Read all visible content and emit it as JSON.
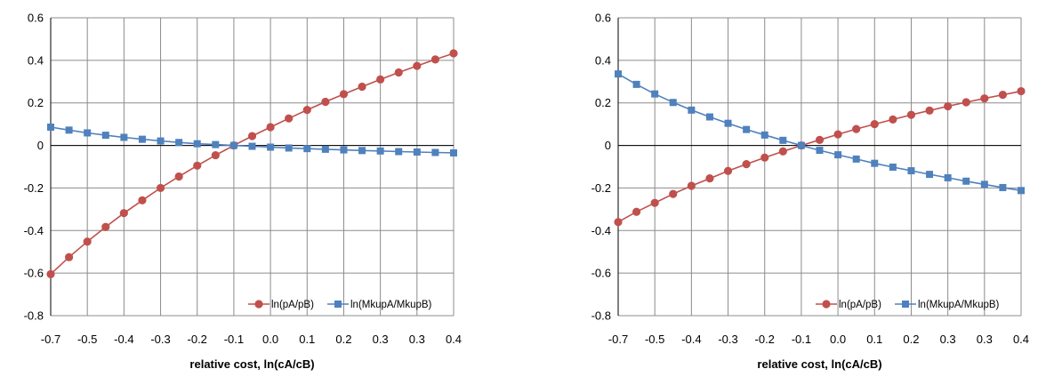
{
  "colors": {
    "series_red": "#c0504d",
    "series_blue": "#4f81bd",
    "grid": "#8c8c8c"
  },
  "chart_data": [
    {
      "type": "line",
      "xlabel": "relative cost, ln(cA/cB)",
      "xlim": [
        -0.7,
        0.4
      ],
      "ylim": [
        -0.8,
        0.6
      ],
      "x_ticks": [
        "-0.7",
        "-0.5",
        "-0.4",
        "-0.3",
        "-0.2",
        "-0.1",
        "0.0",
        "0.1",
        "0.2",
        "0.3",
        "0.3",
        "0.4"
      ],
      "y_ticks": [
        "0.6",
        "0.4",
        "0.2",
        "0",
        "-0.2",
        "-0.4",
        "-0.6",
        "-0.8"
      ],
      "grid": true,
      "legend_position": "bottom-right",
      "x": [
        -0.7,
        -0.65,
        -0.6,
        -0.55,
        -0.5,
        -0.45,
        -0.4,
        -0.35,
        -0.3,
        -0.25,
        -0.2,
        -0.15,
        -0.1,
        -0.05,
        0.0,
        0.05,
        0.1,
        0.15,
        0.2,
        0.25,
        0.3,
        0.35,
        0.4
      ],
      "series": [
        {
          "name": "ln(pA/pB)",
          "marker": "circle",
          "values": [
            -0.605,
            -0.525,
            -0.452,
            -0.383,
            -0.318,
            -0.258,
            -0.2,
            -0.146,
            -0.095,
            -0.046,
            0.0,
            0.044,
            0.086,
            0.127,
            0.167,
            0.205,
            0.241,
            0.276,
            0.31,
            0.343,
            0.374,
            0.404,
            0.433
          ]
        },
        {
          "name": "ln(MkupA/MkupB)",
          "marker": "square",
          "values": [
            0.086,
            0.072,
            0.059,
            0.048,
            0.038,
            0.029,
            0.021,
            0.014,
            0.008,
            0.004,
            0.0,
            -0.004,
            -0.008,
            -0.012,
            -0.015,
            -0.018,
            -0.021,
            -0.024,
            -0.026,
            -0.029,
            -0.031,
            -0.033,
            -0.035
          ]
        }
      ]
    },
    {
      "type": "line",
      "xlabel": "relative cost, ln(cA/cB)",
      "xlim": [
        -0.7,
        0.4
      ],
      "ylim": [
        -0.8,
        0.6
      ],
      "x_ticks": [
        "-0.7",
        "-0.5",
        "-0.4",
        "-0.3",
        "-0.2",
        "-0.1",
        "0.0",
        "0.1",
        "0.2",
        "0.3",
        "0.3",
        "0.4"
      ],
      "y_ticks": [
        "0.6",
        "0.4",
        "0.2",
        "0",
        "-0.2",
        "-0.4",
        "-0.6",
        "-0.8"
      ],
      "grid": true,
      "legend_position": "bottom-right",
      "x": [
        -0.7,
        -0.65,
        -0.6,
        -0.55,
        -0.5,
        -0.45,
        -0.4,
        -0.35,
        -0.3,
        -0.25,
        -0.2,
        -0.15,
        -0.1,
        -0.05,
        0.0,
        0.05,
        0.1,
        0.15,
        0.2,
        0.25,
        0.3,
        0.35,
        0.4
      ],
      "series": [
        {
          "name": "ln(pA/pB)",
          "marker": "circle",
          "values": [
            -0.36,
            -0.312,
            -0.27,
            -0.228,
            -0.19,
            -0.155,
            -0.12,
            -0.088,
            -0.057,
            -0.028,
            0.0,
            0.026,
            0.052,
            0.077,
            0.1,
            0.122,
            0.144,
            0.164,
            0.184,
            0.203,
            0.221,
            0.238,
            0.255
          ]
        },
        {
          "name": "ln(MkupA/MkupB)",
          "marker": "square",
          "values": [
            0.336,
            0.287,
            0.242,
            0.202,
            0.166,
            0.134,
            0.104,
            0.075,
            0.049,
            0.024,
            0.0,
            -0.023,
            -0.044,
            -0.064,
            -0.084,
            -0.102,
            -0.119,
            -0.136,
            -0.152,
            -0.168,
            -0.183,
            -0.198,
            -0.212
          ]
        }
      ]
    }
  ]
}
